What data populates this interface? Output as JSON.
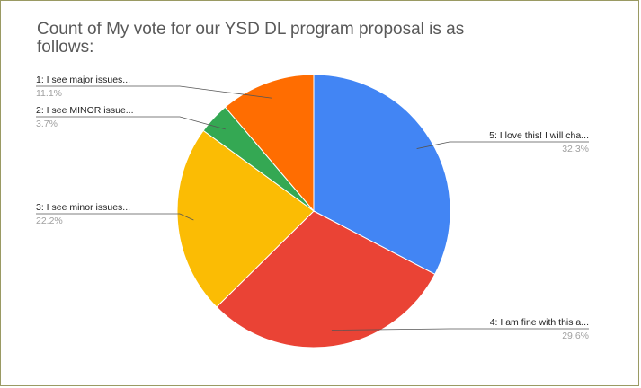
{
  "chart_data": {
    "type": "pie",
    "title": "Count of My vote for our YSD DL program proposal is as\nfollows:",
    "slices": [
      {
        "label": "5:  I love this!  I will cha...",
        "value": 32.3,
        "value_label": "32.3%",
        "color": "#4285f4"
      },
      {
        "label": "4:  I am fine with this a...",
        "value": 29.6,
        "value_label": "29.6%",
        "color": "#ea4335"
      },
      {
        "label": "3:  I see minor issues...",
        "value": 22.2,
        "value_label": "22.2%",
        "color": "#fbbc04"
      },
      {
        "label": "2:  I see MINOR issue...",
        "value": 3.7,
        "value_label": "3.7%",
        "color": "#34a853"
      },
      {
        "label": "1:  I see major issues...",
        "value": 11.1,
        "value_label": "11.1%",
        "color": "#ff6d01"
      }
    ]
  }
}
